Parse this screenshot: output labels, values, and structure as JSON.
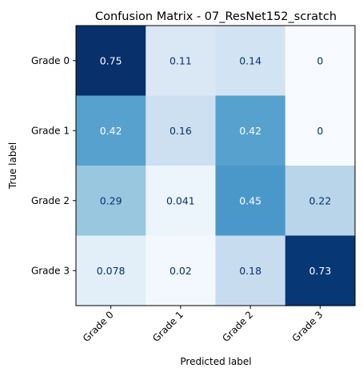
{
  "chart_data": {
    "type": "heatmap",
    "title": "Confusion Matrix - 07_ResNet152_scratch",
    "xlabel": "Predicted label",
    "ylabel": "True label",
    "x_categories": [
      "Grade 0",
      "Grade 1",
      "Grade 2",
      "Grade 3"
    ],
    "y_categories": [
      "Grade 0",
      "Grade 1",
      "Grade 2",
      "Grade 3"
    ],
    "values": [
      [
        0.75,
        0.11,
        0.14,
        0
      ],
      [
        0.42,
        0.16,
        0.42,
        0
      ],
      [
        0.29,
        0.041,
        0.45,
        0.22
      ],
      [
        0.078,
        0.02,
        0.18,
        0.73
      ]
    ],
    "value_labels": [
      [
        "0.75",
        "0.11",
        "0.14",
        "0"
      ],
      [
        "0.42",
        "0.16",
        "0.42",
        "0"
      ],
      [
        "0.29",
        "0.041",
        "0.45",
        "0.22"
      ],
      [
        "0.078",
        "0.02",
        "0.18",
        "0.73"
      ]
    ],
    "colormap": "Blues",
    "grid": false,
    "legend": "none"
  }
}
